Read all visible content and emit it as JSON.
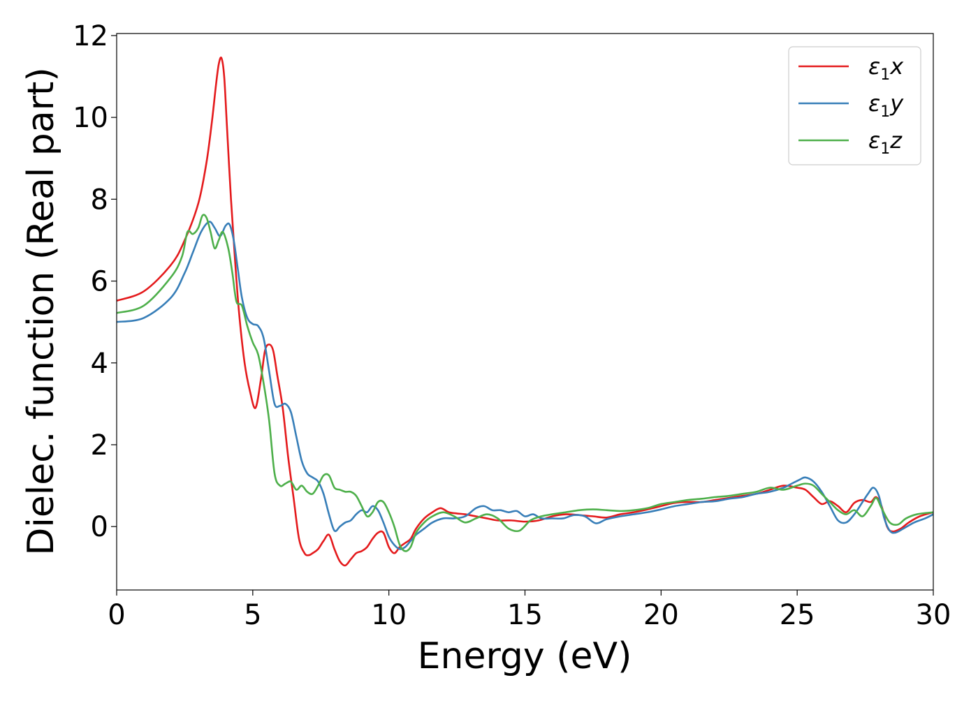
{
  "chart_data": {
    "type": "line",
    "title": "",
    "xlabel": "Energy (eV)",
    "ylabel": "Dielec. function (Real part)",
    "xlim": [
      0,
      30
    ],
    "ylim": [
      -1.55,
      12.05
    ],
    "xticks": [
      0,
      5,
      10,
      15,
      20,
      25,
      30
    ],
    "yticks": [
      0,
      2,
      4,
      6,
      8,
      10,
      12
    ],
    "grid": false,
    "legend_position": "top-right",
    "series": [
      {
        "name": "ε1x",
        "legend_base": "ε",
        "legend_sub": "1",
        "legend_var": "x",
        "color": "#e41a1c",
        "x": [
          0,
          1,
          2,
          2.5,
          3,
          3.3,
          3.5,
          3.65,
          3.75,
          3.85,
          3.95,
          4.05,
          4.2,
          4.35,
          4.5,
          4.7,
          4.9,
          5.1,
          5.3,
          5.45,
          5.6,
          5.75,
          5.9,
          6.1,
          6.3,
          6.5,
          6.7,
          6.9,
          7.05,
          7.2,
          7.4,
          7.6,
          7.8,
          8.0,
          8.2,
          8.4,
          8.6,
          8.8,
          9.0,
          9.2,
          9.4,
          9.6,
          9.8,
          10.0,
          10.2,
          10.4,
          10.6,
          10.8,
          11.0,
          11.3,
          11.6,
          11.9,
          12.2,
          12.5,
          12.8,
          13.2,
          13.6,
          14.0,
          14.5,
          15.0,
          15.5,
          16.0,
          16.5,
          17.0,
          17.5,
          18.0,
          18.5,
          19.0,
          19.5,
          20.0,
          20.5,
          21.0,
          21.5,
          22.0,
          22.5,
          23.0,
          23.5,
          24.0,
          24.5,
          25.0,
          25.3,
          25.6,
          25.9,
          26.2,
          26.5,
          26.8,
          27.1,
          27.4,
          27.7,
          27.9,
          28.1,
          28.3,
          28.5,
          28.8,
          29.1,
          29.5,
          30
        ],
        "y": [
          5.52,
          5.75,
          6.4,
          7.0,
          7.9,
          8.9,
          9.9,
          10.8,
          11.3,
          11.45,
          11.0,
          9.8,
          8.0,
          6.5,
          5.2,
          4.0,
          3.3,
          2.9,
          3.6,
          4.3,
          4.45,
          4.3,
          3.7,
          2.9,
          1.7,
          0.7,
          -0.3,
          -0.65,
          -0.7,
          -0.65,
          -0.55,
          -0.35,
          -0.2,
          -0.55,
          -0.85,
          -0.95,
          -0.8,
          -0.65,
          -0.6,
          -0.5,
          -0.3,
          -0.15,
          -0.15,
          -0.5,
          -0.65,
          -0.5,
          -0.4,
          -0.3,
          -0.05,
          0.2,
          0.35,
          0.45,
          0.35,
          0.32,
          0.3,
          0.25,
          0.2,
          0.15,
          0.15,
          0.12,
          0.15,
          0.25,
          0.3,
          0.28,
          0.25,
          0.22,
          0.3,
          0.35,
          0.42,
          0.5,
          0.58,
          0.6,
          0.6,
          0.65,
          0.7,
          0.75,
          0.8,
          0.9,
          1.0,
          0.95,
          0.9,
          0.72,
          0.55,
          0.62,
          0.5,
          0.35,
          0.58,
          0.65,
          0.6,
          0.72,
          0.5,
          0.0,
          -0.12,
          -0.05,
          0.1,
          0.25,
          0.35
        ]
      },
      {
        "name": "ε1y",
        "legend_base": "ε",
        "legend_sub": "1",
        "legend_var": "y",
        "color": "#377eb8",
        "x": [
          0,
          1,
          2,
          2.5,
          2.8,
          3.1,
          3.4,
          3.6,
          3.8,
          4.0,
          4.15,
          4.3,
          4.45,
          4.6,
          4.8,
          5.0,
          5.2,
          5.4,
          5.6,
          5.8,
          6.0,
          6.2,
          6.4,
          6.6,
          6.8,
          7.0,
          7.2,
          7.4,
          7.6,
          7.8,
          8.0,
          8.2,
          8.4,
          8.6,
          8.8,
          9.0,
          9.2,
          9.4,
          9.6,
          9.8,
          10.0,
          10.2,
          10.4,
          10.6,
          10.8,
          11.0,
          11.3,
          11.6,
          12.0,
          12.4,
          12.8,
          13.2,
          13.5,
          13.8,
          14.1,
          14.4,
          14.7,
          15.0,
          15.3,
          15.6,
          16.0,
          16.4,
          16.8,
          17.2,
          17.6,
          18.0,
          18.5,
          19.0,
          19.5,
          20.0,
          20.5,
          21.0,
          21.5,
          22.0,
          22.5,
          23.0,
          23.5,
          24.0,
          24.5,
          24.8,
          25.1,
          25.3,
          25.6,
          25.9,
          26.2,
          26.5,
          26.8,
          27.1,
          27.4,
          27.6,
          27.8,
          28.0,
          28.2,
          28.4,
          28.6,
          28.9,
          29.3,
          29.7,
          30
        ],
        "y": [
          5.0,
          5.1,
          5.6,
          6.2,
          6.7,
          7.2,
          7.45,
          7.3,
          7.1,
          7.35,
          7.38,
          7.0,
          6.3,
          5.6,
          5.1,
          4.95,
          4.9,
          4.6,
          3.8,
          3.0,
          2.95,
          3.0,
          2.8,
          2.2,
          1.6,
          1.3,
          1.2,
          1.1,
          0.8,
          0.3,
          -0.1,
          0.0,
          0.1,
          0.15,
          0.3,
          0.4,
          0.35,
          0.5,
          0.4,
          0.1,
          -0.25,
          -0.45,
          -0.55,
          -0.5,
          -0.35,
          -0.2,
          -0.05,
          0.1,
          0.2,
          0.2,
          0.25,
          0.45,
          0.5,
          0.4,
          0.4,
          0.35,
          0.38,
          0.25,
          0.3,
          0.2,
          0.2,
          0.2,
          0.28,
          0.25,
          0.08,
          0.18,
          0.25,
          0.3,
          0.35,
          0.42,
          0.5,
          0.55,
          0.6,
          0.62,
          0.68,
          0.72,
          0.8,
          0.85,
          0.95,
          1.05,
          1.15,
          1.2,
          1.1,
          0.85,
          0.5,
          0.15,
          0.1,
          0.3,
          0.6,
          0.8,
          0.95,
          0.75,
          0.2,
          -0.1,
          -0.15,
          -0.05,
          0.1,
          0.2,
          0.3
        ]
      },
      {
        "name": "ε1z",
        "legend_base": "ε",
        "legend_sub": "1",
        "legend_var": "z",
        "color": "#4daf4a",
        "x": [
          0,
          1,
          2,
          2.4,
          2.6,
          2.8,
          3.0,
          3.15,
          3.3,
          3.45,
          3.6,
          3.75,
          3.9,
          4.1,
          4.25,
          4.4,
          4.6,
          4.8,
          5.0,
          5.2,
          5.4,
          5.6,
          5.8,
          6.0,
          6.2,
          6.4,
          6.6,
          6.8,
          7.0,
          7.2,
          7.4,
          7.6,
          7.8,
          8.0,
          8.2,
          8.4,
          8.6,
          8.8,
          9.0,
          9.2,
          9.4,
          9.6,
          9.8,
          10.0,
          10.2,
          10.4,
          10.6,
          10.8,
          11.0,
          11.3,
          11.6,
          12.0,
          12.4,
          12.8,
          13.2,
          13.6,
          14.0,
          14.4,
          14.8,
          15.2,
          15.6,
          16.0,
          16.5,
          17.0,
          17.5,
          18.0,
          18.5,
          19.0,
          19.5,
          20.0,
          20.5,
          21.0,
          21.5,
          22.0,
          22.5,
          23.0,
          23.5,
          24.0,
          24.5,
          25.0,
          25.3,
          25.6,
          25.9,
          26.2,
          26.5,
          26.8,
          27.1,
          27.4,
          27.7,
          27.9,
          28.1,
          28.4,
          28.7,
          29.0,
          29.4,
          30
        ],
        "y": [
          5.22,
          5.4,
          6.1,
          6.6,
          7.2,
          7.15,
          7.3,
          7.6,
          7.55,
          7.2,
          6.8,
          7.0,
          7.2,
          6.8,
          6.2,
          5.5,
          5.4,
          4.9,
          4.5,
          4.2,
          3.5,
          2.6,
          1.3,
          1.0,
          1.05,
          1.1,
          0.9,
          1.0,
          0.85,
          0.8,
          1.0,
          1.25,
          1.25,
          0.95,
          0.9,
          0.85,
          0.85,
          0.75,
          0.5,
          0.25,
          0.35,
          0.6,
          0.6,
          0.35,
          0.0,
          -0.45,
          -0.6,
          -0.5,
          -0.15,
          0.1,
          0.25,
          0.35,
          0.25,
          0.1,
          0.2,
          0.3,
          0.2,
          -0.05,
          -0.1,
          0.15,
          0.25,
          0.3,
          0.35,
          0.4,
          0.42,
          0.4,
          0.38,
          0.4,
          0.45,
          0.55,
          0.6,
          0.65,
          0.68,
          0.72,
          0.75,
          0.8,
          0.85,
          0.95,
          0.9,
          1.0,
          1.05,
          1.0,
          0.8,
          0.6,
          0.4,
          0.3,
          0.4,
          0.25,
          0.5,
          0.7,
          0.45,
          0.1,
          0.05,
          0.2,
          0.3,
          0.35
        ]
      }
    ]
  }
}
